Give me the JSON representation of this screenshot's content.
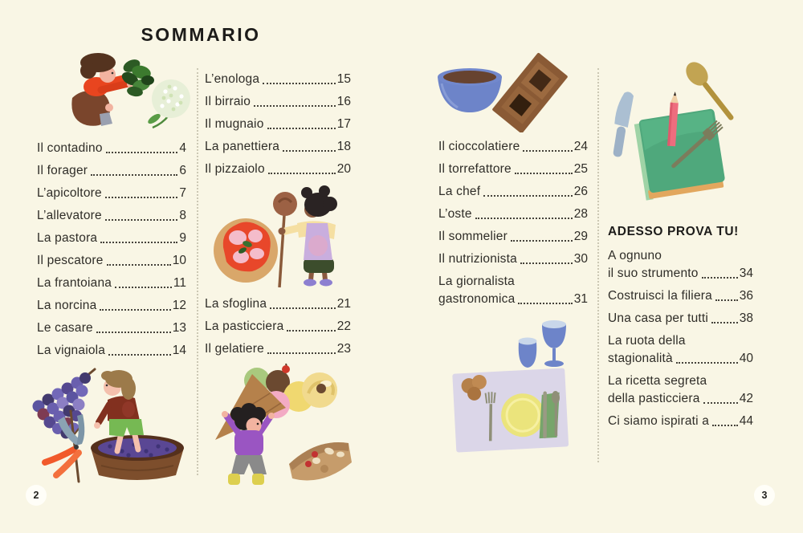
{
  "meta": {
    "title": "SOMMARIO"
  },
  "colors": {
    "paper": "#f9f6e5",
    "text": "#2f2d28",
    "divider_dots": "#ccc8b4"
  },
  "left_page": {
    "page_number": "2",
    "column1": {
      "items": [
        {
          "label": "Il contadino",
          "page": "4"
        },
        {
          "label": "Il forager",
          "page": "6"
        },
        {
          "label": "L’apicoltore",
          "page": "7"
        },
        {
          "label": "L’allevatore",
          "page": "8"
        },
        {
          "label": "La pastora",
          "page": "9"
        },
        {
          "label": "Il pescatore",
          "page": "10"
        },
        {
          "label": "La frantoiana",
          "page": "11"
        },
        {
          "label": "La norcina",
          "page": "12"
        },
        {
          "label": "Le casare",
          "page": "13"
        },
        {
          "label": "La vignaiola",
          "page": "14"
        }
      ]
    },
    "column2_top": {
      "items": [
        {
          "label": "L’enologa",
          "page": "15"
        },
        {
          "label": "Il birraio",
          "page": "16"
        },
        {
          "label": "Il mugnaio",
          "page": "17"
        },
        {
          "label": "La panettiera",
          "page": "18"
        },
        {
          "label": "Il pizzaiolo",
          "page": "20"
        }
      ]
    },
    "column2_bottom": {
      "items": [
        {
          "label": "La sfoglina",
          "page": "21"
        },
        {
          "label": "La pasticciera",
          "page": "22"
        },
        {
          "label": "Il gelatiere",
          "page": "23"
        }
      ]
    }
  },
  "right_page": {
    "page_number": "3",
    "column3": {
      "items": [
        {
          "label": "Il cioccolatiere",
          "page": "24"
        },
        {
          "label": "Il torrefattore",
          "page": "25"
        },
        {
          "label": "La chef",
          "page": "26"
        },
        {
          "label": "L’oste",
          "page": "28"
        },
        {
          "label": "Il sommelier",
          "page": "29"
        },
        {
          "label": "Il nutrizionista",
          "page": "30"
        },
        {
          "lines": [
            "La giornalista",
            "gastronomica"
          ],
          "page": "31"
        }
      ]
    },
    "column4": {
      "heading": "ADESSO PROVA TU!",
      "items": [
        {
          "lines": [
            "A ognuno",
            "il suo strumento"
          ],
          "page": "34"
        },
        {
          "label": "Costruisci la filiera",
          "page": "36"
        },
        {
          "label": "Una casa per tutti",
          "page": "38"
        },
        {
          "lines": [
            "La ruota della",
            "stagionalità"
          ],
          "page": "40"
        },
        {
          "lines": [
            "La ricetta segreta",
            "della pasticciera"
          ],
          "page": "42"
        },
        {
          "label": "Ci siamo ispirati a",
          "page": "44"
        }
      ]
    }
  },
  "illustrations": {
    "forager": "forager picking wild greens beside a white flower",
    "winemaking": "grape bunch, pruning shears and child stomping grapes in a barrel",
    "pizzaiolo": "margherita pizza and child holding a pizza peel",
    "gelato": "child carrying a giant gelato cone, cream pastry and cake slice",
    "chocolate": "blue bowl of melted chocolate and a chocolate bar mould",
    "table_setting": "place setting with plate, cutlery, bread rolls and two blue glasses",
    "activity_book": "green notebook with pink pencil, wooden spoon, knife and fork"
  }
}
